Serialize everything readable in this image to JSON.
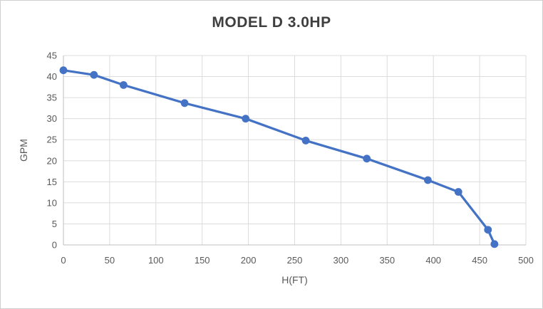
{
  "chart_data": {
    "type": "line",
    "title": "MODEL D 3.0HP",
    "xlabel": "H(FT)",
    "ylabel": "GPM",
    "xlim": [
      0,
      500
    ],
    "ylim": [
      0,
      45
    ],
    "x_ticks": [
      0,
      50,
      100,
      150,
      200,
      250,
      300,
      350,
      400,
      450,
      500
    ],
    "y_ticks": [
      0,
      5,
      10,
      15,
      20,
      25,
      30,
      35,
      40,
      45
    ],
    "grid": "both",
    "legend_position": "none",
    "series": [
      {
        "name": "MODEL D 3.0HP",
        "marker": "circle",
        "x": [
          0,
          33,
          65,
          131,
          197,
          262,
          328,
          394,
          427,
          459,
          466
        ],
        "y": [
          41.5,
          40.4,
          38.0,
          33.7,
          30.0,
          24.8,
          20.5,
          15.4,
          12.6,
          3.6,
          0.2
        ]
      }
    ],
    "colors": {
      "series": "#4472C4",
      "gridline": "#dcdcdc",
      "axis_line": "#bfbfbf",
      "tick_text": "#595959",
      "axis_label_text": "#595959",
      "title_text": "#3f3f3f"
    }
  }
}
